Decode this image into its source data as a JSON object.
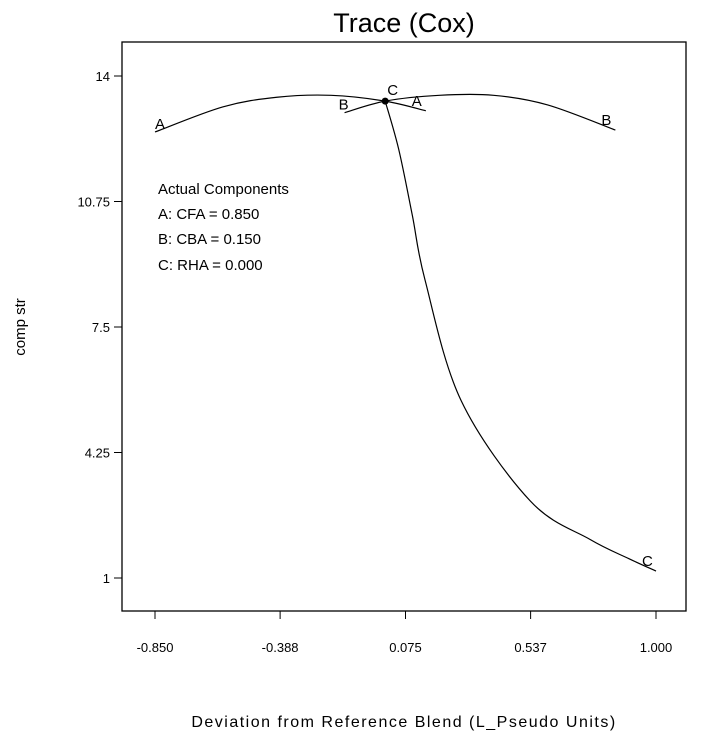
{
  "chart_data": {
    "type": "line",
    "title": "Trace (Cox)",
    "xlabel": "Deviation from Reference Blend (L_Pseudo Units)",
    "ylabel": "comp str",
    "xlim": [
      -0.85,
      1.0
    ],
    "ylim": [
      1,
      14
    ],
    "x_ticks": [
      "-0.850",
      "-0.388",
      "0.075",
      "0.537",
      "1.000"
    ],
    "x_tick_values": [
      -0.85,
      -0.388,
      0.075,
      0.537,
      1.0
    ],
    "y_ticks": [
      "14",
      "10.75",
      "7.5",
      "4.25",
      "1"
    ],
    "y_tick_values": [
      14,
      10.75,
      7.5,
      4.25,
      1
    ],
    "grid": false,
    "reference_point": {
      "x": 0.0,
      "y": 13.35
    },
    "series": [
      {
        "name": "A",
        "x": [
          -0.85,
          -0.6,
          -0.4,
          -0.2,
          0.0,
          0.15
        ],
        "y": [
          12.55,
          13.2,
          13.45,
          13.5,
          13.35,
          13.1
        ]
      },
      {
        "name": "B",
        "x": [
          -0.15,
          0.0,
          0.2,
          0.4,
          0.6,
          0.85
        ],
        "y": [
          13.05,
          13.35,
          13.5,
          13.5,
          13.25,
          12.6
        ]
      },
      {
        "name": "C",
        "x": [
          0.0,
          0.05,
          0.1,
          0.147,
          0.28,
          0.535,
          0.756,
          0.9,
          1.0
        ],
        "y": [
          13.35,
          12.1,
          10.4,
          8.72,
          5.6,
          3.0,
          2.0,
          1.5,
          1.18
        ]
      }
    ],
    "annotations": {
      "heading": "Actual Components",
      "lines": [
        "A: CFA = 0.850",
        "B: CBA = 0.150",
        "C: RHA = 0.000"
      ]
    }
  }
}
